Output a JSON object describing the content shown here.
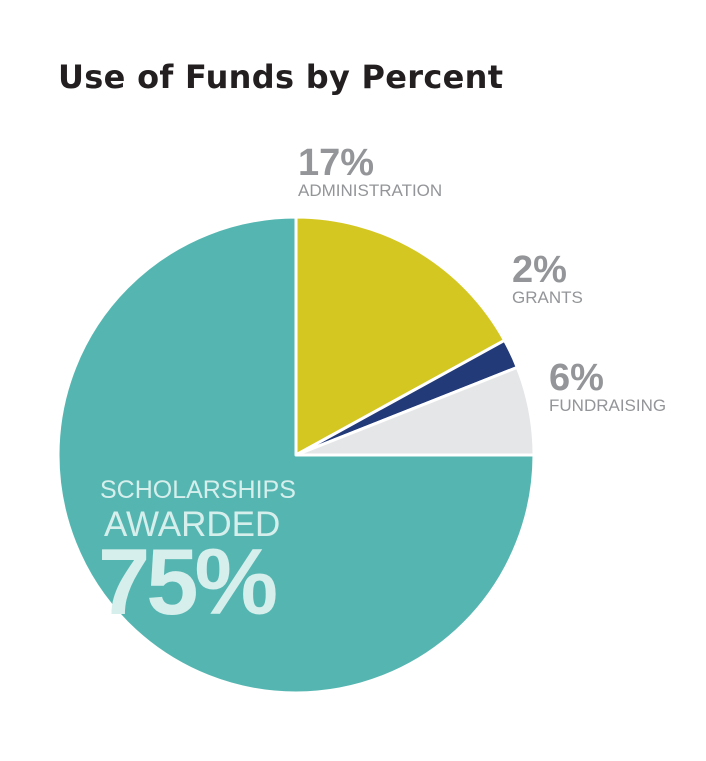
{
  "chart_data": {
    "type": "pie",
    "title": "Use of Funds by Percent",
    "slices": [
      {
        "label": "ADMINISTRATION",
        "value": 17,
        "display": "17%",
        "color": "#d5c722"
      },
      {
        "label": "GRANTS",
        "value": 2,
        "display": "2%",
        "color": "#233a78"
      },
      {
        "label": "FUNDRAISING",
        "value": 6,
        "display": "6%",
        "color": "#e5e6e8"
      },
      {
        "label": "SCHOLARSHIPS AWARDED",
        "label_lines": [
          "SCHOLARSHIPS",
          "AWARDED"
        ],
        "value": 75,
        "display": "75%",
        "color": "#55b6b1"
      }
    ],
    "start_angle_deg": 0,
    "direction": "clockwise",
    "label_color": "#939598",
    "inner_label_color": "#d6efed"
  }
}
